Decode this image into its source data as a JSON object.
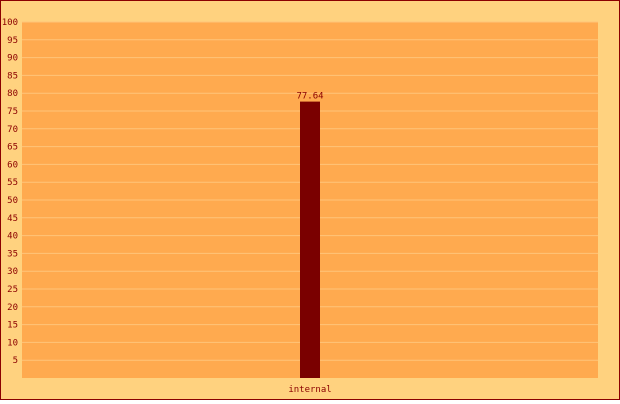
{
  "chart_data": {
    "type": "bar",
    "categories": [
      "internal"
    ],
    "values": [
      77.64
    ],
    "value_labels": [
      "77.64"
    ],
    "title": "",
    "xlabel": "",
    "ylabel": "",
    "ylim": [
      0,
      100
    ],
    "y_ticks": [
      "5",
      "10",
      "15",
      "20",
      "25",
      "30",
      "35",
      "40",
      "45",
      "50",
      "55",
      "60",
      "65",
      "70",
      "75",
      "80",
      "85",
      "90",
      "95",
      "100"
    ],
    "grid": true,
    "legend": "none"
  },
  "colors": {
    "page_background": "#FFD27F",
    "plot_background": "#FFAA4F",
    "gridline": "#FFC47A",
    "frame_border": "#8B0000",
    "bar_fill": "#7A0000",
    "text": "#8B0000"
  }
}
